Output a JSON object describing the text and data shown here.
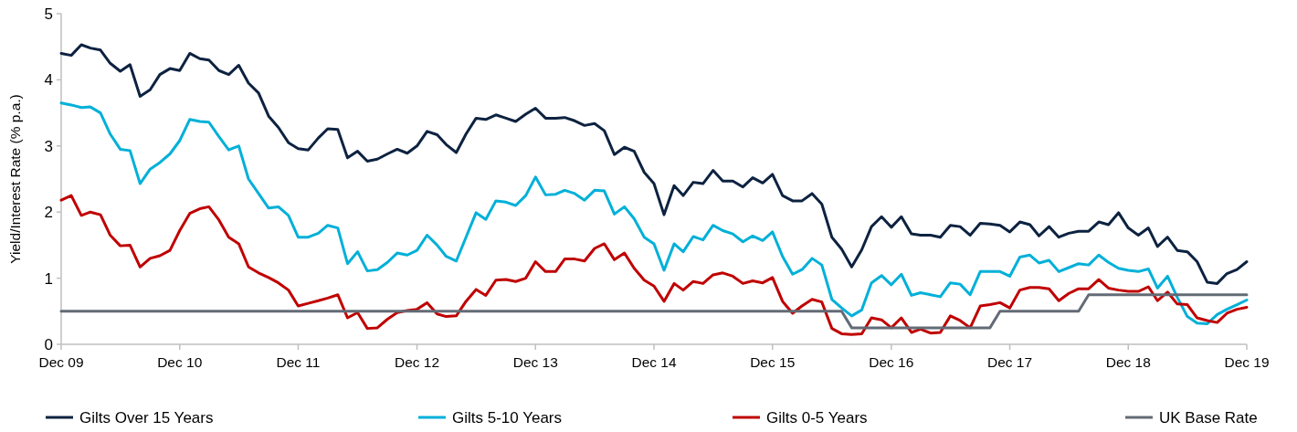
{
  "chart_data": {
    "type": "line",
    "ylabel": "Yield/Interest Rate (% p.a.)",
    "x": [
      "2009-12",
      "2010-01",
      "2010-02",
      "2010-03",
      "2010-04",
      "2010-05",
      "2010-06",
      "2010-07",
      "2010-08",
      "2010-09",
      "2010-10",
      "2010-11",
      "2010-12",
      "2011-01",
      "2011-02",
      "2011-03",
      "2011-04",
      "2011-05",
      "2011-06",
      "2011-07",
      "2011-08",
      "2011-09",
      "2011-10",
      "2011-11",
      "2011-12",
      "2012-01",
      "2012-02",
      "2012-03",
      "2012-04",
      "2012-05",
      "2012-06",
      "2012-07",
      "2012-08",
      "2012-09",
      "2012-10",
      "2012-11",
      "2012-12",
      "2013-01",
      "2013-02",
      "2013-03",
      "2013-04",
      "2013-05",
      "2013-06",
      "2013-07",
      "2013-08",
      "2013-09",
      "2013-10",
      "2013-11",
      "2013-12",
      "2014-01",
      "2014-02",
      "2014-03",
      "2014-04",
      "2014-05",
      "2014-06",
      "2014-07",
      "2014-08",
      "2014-09",
      "2014-10",
      "2014-11",
      "2014-12",
      "2015-01",
      "2015-02",
      "2015-03",
      "2015-04",
      "2015-05",
      "2015-06",
      "2015-07",
      "2015-08",
      "2015-09",
      "2015-10",
      "2015-11",
      "2015-12",
      "2016-01",
      "2016-02",
      "2016-03",
      "2016-04",
      "2016-05",
      "2016-06",
      "2016-07",
      "2016-08",
      "2016-09",
      "2016-10",
      "2016-11",
      "2016-12",
      "2017-01",
      "2017-02",
      "2017-03",
      "2017-04",
      "2017-05",
      "2017-06",
      "2017-07",
      "2017-08",
      "2017-09",
      "2017-10",
      "2017-11",
      "2017-12",
      "2018-01",
      "2018-02",
      "2018-03",
      "2018-04",
      "2018-05",
      "2018-06",
      "2018-07",
      "2018-08",
      "2018-09",
      "2018-10",
      "2018-11",
      "2018-12",
      "2019-01",
      "2019-02",
      "2019-03",
      "2019-04",
      "2019-05",
      "2019-06",
      "2019-07",
      "2019-08",
      "2019-09",
      "2019-10",
      "2019-11",
      "2019-12"
    ],
    "series": [
      {
        "name": "Gilts Over 15 Years",
        "color": "#0d2240",
        "values": [
          4.4,
          4.37,
          4.53,
          4.48,
          4.45,
          4.25,
          4.13,
          4.23,
          3.75,
          3.85,
          4.08,
          4.17,
          4.14,
          4.4,
          4.32,
          4.3,
          4.14,
          4.08,
          4.22,
          3.95,
          3.8,
          3.45,
          3.28,
          3.05,
          2.96,
          2.94,
          3.12,
          3.26,
          3.25,
          2.82,
          2.92,
          2.77,
          2.8,
          2.88,
          2.95,
          2.89,
          3.0,
          3.22,
          3.17,
          3.02,
          2.9,
          3.18,
          3.42,
          3.4,
          3.47,
          3.42,
          3.37,
          3.48,
          3.57,
          3.42,
          3.42,
          3.43,
          3.38,
          3.31,
          3.34,
          3.23,
          2.87,
          2.98,
          2.92,
          2.6,
          2.43,
          1.96,
          2.4,
          2.25,
          2.45,
          2.43,
          2.63,
          2.47,
          2.47,
          2.38,
          2.52,
          2.44,
          2.57,
          2.25,
          2.17,
          2.17,
          2.28,
          2.12,
          1.62,
          1.44,
          1.17,
          1.43,
          1.78,
          1.93,
          1.77,
          1.93,
          1.67,
          1.65,
          1.65,
          1.62,
          1.8,
          1.78,
          1.65,
          1.83,
          1.82,
          1.8,
          1.7,
          1.85,
          1.81,
          1.64,
          1.78,
          1.62,
          1.68,
          1.71,
          1.71,
          1.85,
          1.81,
          1.99,
          1.76,
          1.65,
          1.76,
          1.48,
          1.62,
          1.42,
          1.4,
          1.25,
          0.94,
          0.92,
          1.07,
          1.13,
          1.25
        ]
      },
      {
        "name": "Gilts 5-10 Years",
        "color": "#00b0d8",
        "values": [
          3.65,
          3.62,
          3.58,
          3.59,
          3.5,
          3.18,
          2.95,
          2.93,
          2.43,
          2.65,
          2.75,
          2.88,
          3.08,
          3.4,
          3.37,
          3.36,
          3.14,
          2.94,
          3.0,
          2.5,
          2.28,
          2.06,
          2.08,
          1.95,
          1.62,
          1.62,
          1.68,
          1.8,
          1.76,
          1.22,
          1.4,
          1.11,
          1.13,
          1.24,
          1.38,
          1.35,
          1.42,
          1.65,
          1.5,
          1.33,
          1.26,
          1.62,
          1.99,
          1.89,
          2.17,
          2.15,
          2.1,
          2.25,
          2.53,
          2.26,
          2.27,
          2.33,
          2.28,
          2.18,
          2.33,
          2.32,
          1.97,
          2.08,
          1.9,
          1.62,
          1.52,
          1.12,
          1.52,
          1.4,
          1.63,
          1.58,
          1.8,
          1.72,
          1.67,
          1.55,
          1.64,
          1.57,
          1.7,
          1.33,
          1.06,
          1.13,
          1.3,
          1.2,
          0.68,
          0.55,
          0.43,
          0.52,
          0.93,
          1.04,
          0.9,
          1.06,
          0.74,
          0.78,
          0.75,
          0.72,
          0.93,
          0.91,
          0.75,
          1.1,
          1.1,
          1.1,
          1.03,
          1.32,
          1.35,
          1.23,
          1.27,
          1.1,
          1.16,
          1.22,
          1.2,
          1.35,
          1.24,
          1.15,
          1.12,
          1.1,
          1.14,
          0.85,
          1.03,
          0.71,
          0.42,
          0.32,
          0.31,
          0.45,
          0.53,
          0.6,
          0.67
        ]
      },
      {
        "name": "Gilts 0-5 Years",
        "color": "#c00000",
        "values": [
          2.18,
          2.25,
          1.95,
          2.0,
          1.96,
          1.65,
          1.49,
          1.5,
          1.17,
          1.3,
          1.34,
          1.42,
          1.72,
          1.98,
          2.05,
          2.08,
          1.88,
          1.62,
          1.52,
          1.17,
          1.08,
          1.01,
          0.93,
          0.82,
          0.58,
          0.62,
          0.66,
          0.7,
          0.75,
          0.4,
          0.48,
          0.24,
          0.25,
          0.38,
          0.48,
          0.51,
          0.53,
          0.63,
          0.46,
          0.42,
          0.43,
          0.65,
          0.83,
          0.74,
          0.97,
          0.98,
          0.95,
          1.0,
          1.25,
          1.1,
          1.1,
          1.29,
          1.29,
          1.26,
          1.45,
          1.52,
          1.28,
          1.38,
          1.15,
          0.97,
          0.88,
          0.65,
          0.92,
          0.82,
          0.95,
          0.92,
          1.05,
          1.08,
          1.03,
          0.92,
          0.96,
          0.93,
          1.01,
          0.65,
          0.47,
          0.58,
          0.68,
          0.64,
          0.24,
          0.16,
          0.15,
          0.16,
          0.4,
          0.37,
          0.25,
          0.4,
          0.18,
          0.23,
          0.17,
          0.18,
          0.43,
          0.36,
          0.25,
          0.58,
          0.6,
          0.63,
          0.55,
          0.82,
          0.86,
          0.86,
          0.84,
          0.66,
          0.77,
          0.84,
          0.84,
          0.98,
          0.85,
          0.82,
          0.8,
          0.8,
          0.87,
          0.66,
          0.79,
          0.61,
          0.6,
          0.4,
          0.36,
          0.33,
          0.47,
          0.53,
          0.56
        ]
      },
      {
        "name": "UK Base Rate",
        "color": "#636b76",
        "x": [
          "2009-12",
          "2016-07",
          "2016-08",
          "2017-10",
          "2017-11",
          "2018-07",
          "2018-08",
          "2019-12"
        ],
        "values": [
          0.5,
          0.5,
          0.25,
          0.25,
          0.5,
          0.5,
          0.75,
          0.75
        ]
      }
    ],
    "xlim": [
      "2009-12",
      "2019-12"
    ],
    "xticks": [
      {
        "value": "2009-12",
        "label": "Dec 09"
      },
      {
        "value": "2010-12",
        "label": "Dec 10"
      },
      {
        "value": "2011-12",
        "label": "Dec 11"
      },
      {
        "value": "2012-12",
        "label": "Dec 12"
      },
      {
        "value": "2013-12",
        "label": "Dec 13"
      },
      {
        "value": "2014-12",
        "label": "Dec 14"
      },
      {
        "value": "2015-12",
        "label": "Dec 15"
      },
      {
        "value": "2016-12",
        "label": "Dec 16"
      },
      {
        "value": "2017-12",
        "label": "Dec 17"
      },
      {
        "value": "2018-12",
        "label": "Dec 18"
      },
      {
        "value": "2019-12",
        "label": "Dec 19"
      }
    ],
    "ylim": [
      0,
      5
    ],
    "yticks": [
      0,
      1,
      2,
      3,
      4,
      5
    ],
    "grid": false,
    "legend": "bottom"
  }
}
